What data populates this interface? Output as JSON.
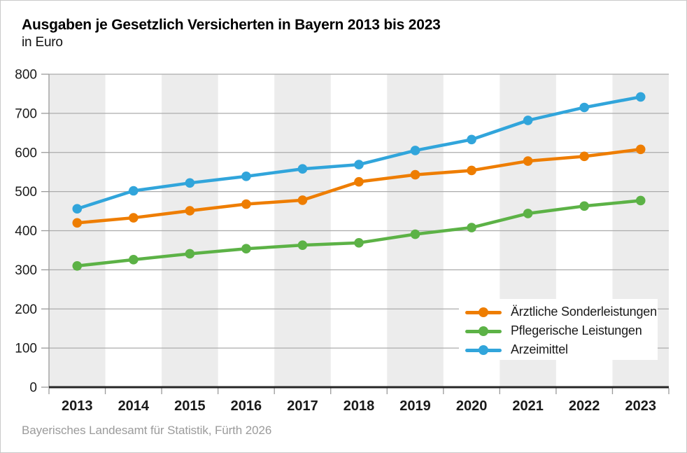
{
  "header": {
    "title": "Ausgaben je Gesetzlich Versicherten in Bayern 2013 bis 2023",
    "subtitle": "in Euro"
  },
  "footer": {
    "source": "Bayerisches Landesamt für Statistik, Fürth 2026"
  },
  "chart_data": {
    "type": "line",
    "title": "Ausgaben je Gesetzlich Versicherten in Bayern 2013 bis 2023",
    "unit": "in Euro",
    "categories": [
      "2013",
      "2014",
      "2015",
      "2016",
      "2017",
      "2018",
      "2019",
      "2020",
      "2021",
      "2022",
      "2023"
    ],
    "series": [
      {
        "name": "Ärztliche Sonderleistungen",
        "color": "#EE7D00",
        "values": [
          420,
          433,
          451,
          468,
          478,
          525,
          543,
          554,
          578,
          590,
          608
        ]
      },
      {
        "name": "Pflegerische Leistungen",
        "color": "#5CB246",
        "values": [
          310,
          326,
          341,
          354,
          363,
          369,
          391,
          408,
          444,
          463,
          477
        ]
      },
      {
        "name": "Arzeimittel",
        "color": "#31A5DB",
        "values": [
          456,
          502,
          522,
          539,
          558,
          569,
          605,
          633,
          682,
          715,
          742
        ]
      }
    ],
    "ylim": [
      0,
      800
    ],
    "ytick_step": 100,
    "xlabel": "",
    "ylabel": "in Euro",
    "grid": true,
    "legend_position": "bottom-right",
    "background_bands": "alternating vertical bands on odd years starting 2013"
  },
  "styles": {
    "band_color": "#ECECEC",
    "grid_color": "#ABABAB",
    "axis_color": "#9A9A9A",
    "zero_line_color": "#262626",
    "tick_color": "#9A9A9A"
  }
}
